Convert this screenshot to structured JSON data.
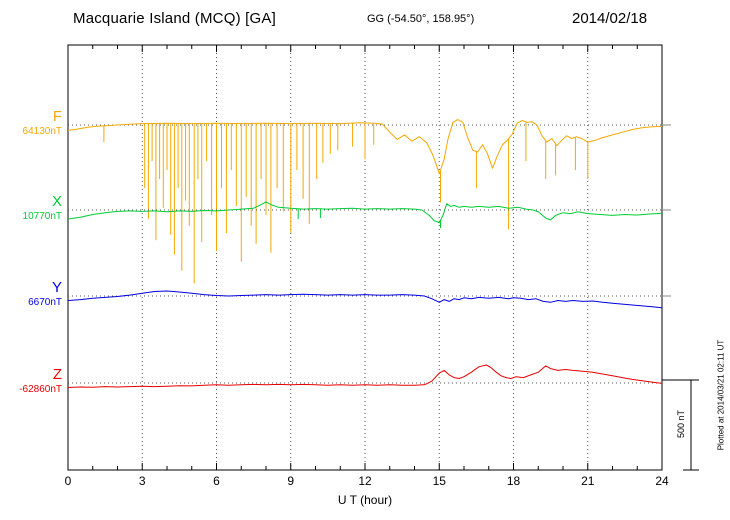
{
  "chart_data": {
    "type": "line",
    "title": "Macquarie Island (MCQ)  [GA]",
    "subtitle": "GG (-54.50°, 158.95°)",
    "date": "2014/02/18",
    "xlabel": "U T (hour)",
    "x_ticks": [
      0,
      3,
      6,
      9,
      12,
      15,
      18,
      21,
      24
    ],
    "x_range": [
      0,
      24
    ],
    "grid": "dotted vertical lines every 3 hours; dotted horizontal baseline per component",
    "legend_position": "left",
    "scale_bar": {
      "label": "500 nT",
      "nT": 500
    },
    "plotted_at": "Plotted at 2014/03/21 02:11 UT",
    "points_format": "[hour UT, offset in nT relative to component baseline]",
    "series": [
      {
        "name": "F",
        "color": "#f5a800",
        "baseline_label": "64130nT",
        "baseline_nT": 64130,
        "unit": "nT",
        "points": [
          [
            0,
            -30
          ],
          [
            0.4,
            -22
          ],
          [
            0.8,
            -12
          ],
          [
            1.2,
            -6
          ],
          [
            1.6,
            -4
          ],
          [
            2,
            0
          ],
          [
            2.5,
            4
          ],
          [
            3,
            8
          ],
          [
            4,
            10
          ],
          [
            5,
            8
          ],
          [
            6,
            10
          ],
          [
            7,
            8
          ],
          [
            8,
            10
          ],
          [
            9,
            8
          ],
          [
            10,
            10
          ],
          [
            11,
            8
          ],
          [
            11.8,
            12
          ],
          [
            12.4,
            10
          ],
          [
            12.7,
            5
          ],
          [
            13,
            -40
          ],
          [
            13.3,
            -80
          ],
          [
            13.6,
            -55
          ],
          [
            13.9,
            -90
          ],
          [
            14.2,
            -65
          ],
          [
            14.5,
            -100
          ],
          [
            14.75,
            -170
          ],
          [
            15,
            -270
          ],
          [
            15.2,
            -190
          ],
          [
            15.35,
            -80
          ],
          [
            15.55,
            15
          ],
          [
            15.75,
            30
          ],
          [
            15.95,
            15
          ],
          [
            16.15,
            -70
          ],
          [
            16.35,
            -140
          ],
          [
            16.55,
            -150
          ],
          [
            16.75,
            -110
          ],
          [
            16.95,
            -160
          ],
          [
            17.15,
            -240
          ],
          [
            17.35,
            -170
          ],
          [
            17.55,
            -110
          ],
          [
            17.75,
            -85
          ],
          [
            17.95,
            -50
          ],
          [
            18.15,
            10
          ],
          [
            18.35,
            25
          ],
          [
            18.55,
            15
          ],
          [
            18.75,
            18
          ],
          [
            18.95,
            0
          ],
          [
            19.15,
            -60
          ],
          [
            19.35,
            -95
          ],
          [
            19.55,
            -75
          ],
          [
            19.75,
            -115
          ],
          [
            19.95,
            -85
          ],
          [
            20.15,
            -60
          ],
          [
            20.35,
            -75
          ],
          [
            20.55,
            -65
          ],
          [
            20.75,
            -75
          ],
          [
            21,
            -95
          ],
          [
            21.3,
            -85
          ],
          [
            21.6,
            -70
          ],
          [
            22,
            -55
          ],
          [
            22.4,
            -40
          ],
          [
            22.8,
            -25
          ],
          [
            23.2,
            -15
          ],
          [
            23.6,
            -10
          ],
          [
            24,
            -8
          ]
        ],
        "spikes": [
          [
            1.45,
            -95
          ],
          [
            3.1,
            -350
          ],
          [
            3.25,
            -520
          ],
          [
            3.4,
            -200
          ],
          [
            3.55,
            -640
          ],
          [
            3.7,
            -300
          ],
          [
            3.85,
            -460
          ],
          [
            4,
            -250
          ],
          [
            4.15,
            -610
          ],
          [
            4.3,
            -720
          ],
          [
            4.45,
            -350
          ],
          [
            4.6,
            -810
          ],
          [
            4.75,
            -420
          ],
          [
            4.9,
            -560
          ],
          [
            5.1,
            -880
          ],
          [
            5.25,
            -300
          ],
          [
            5.4,
            -650
          ],
          [
            5.6,
            -200
          ],
          [
            5.8,
            -500
          ],
          [
            6,
            -700
          ],
          [
            6.2,
            -350
          ],
          [
            6.4,
            -600
          ],
          [
            6.6,
            -250
          ],
          [
            6.8,
            -450
          ],
          [
            7,
            -760
          ],
          [
            7.2,
            -400
          ],
          [
            7.4,
            -560
          ],
          [
            7.6,
            -660
          ],
          [
            7.8,
            -300
          ],
          [
            8,
            -500
          ],
          [
            8.2,
            -710
          ],
          [
            8.45,
            -350
          ],
          [
            8.7,
            -480
          ],
          [
            9,
            -600
          ],
          [
            9.25,
            -250
          ],
          [
            9.5,
            -410
          ],
          [
            9.75,
            -550
          ],
          [
            10.05,
            -300
          ],
          [
            10.3,
            -210
          ],
          [
            10.6,
            -160
          ],
          [
            10.9,
            -140
          ],
          [
            11.5,
            -120
          ],
          [
            12,
            -190
          ],
          [
            12.35,
            -110
          ],
          [
            15.05,
            -430
          ],
          [
            16.5,
            -350
          ],
          [
            17.8,
            -580
          ],
          [
            18.5,
            -200
          ],
          [
            19.3,
            -300
          ],
          [
            19.7,
            -280
          ],
          [
            20.5,
            -250
          ],
          [
            21,
            -300
          ]
        ]
      },
      {
        "name": "X",
        "color": "#00cc33",
        "baseline_label": "10770nT",
        "baseline_nT": 10770,
        "unit": "nT",
        "points": [
          [
            0,
            -50
          ],
          [
            0.5,
            -40
          ],
          [
            1,
            -25
          ],
          [
            1.5,
            -15
          ],
          [
            2,
            -8
          ],
          [
            2.5,
            -5
          ],
          [
            3,
            -8
          ],
          [
            3.5,
            -5
          ],
          [
            4,
            -10
          ],
          [
            4.5,
            -5
          ],
          [
            5,
            -8
          ],
          [
            5.5,
            -3
          ],
          [
            6,
            -5
          ],
          [
            6.5,
            0
          ],
          [
            7,
            5
          ],
          [
            7.5,
            10
          ],
          [
            7.8,
            30
          ],
          [
            8,
            45
          ],
          [
            8.2,
            30
          ],
          [
            8.5,
            15
          ],
          [
            9,
            10
          ],
          [
            9.5,
            5
          ],
          [
            10,
            8
          ],
          [
            10.5,
            5
          ],
          [
            11,
            8
          ],
          [
            11.5,
            10
          ],
          [
            12,
            5
          ],
          [
            12.5,
            8
          ],
          [
            13,
            5
          ],
          [
            13.5,
            8
          ],
          [
            14,
            5
          ],
          [
            14.3,
            0
          ],
          [
            14.6,
            -30
          ],
          [
            14.8,
            -60
          ],
          [
            15,
            -70
          ],
          [
            15.15,
            -30
          ],
          [
            15.3,
            35
          ],
          [
            15.45,
            20
          ],
          [
            15.6,
            25
          ],
          [
            15.8,
            15
          ],
          [
            16,
            20
          ],
          [
            16.3,
            15
          ],
          [
            16.6,
            20
          ],
          [
            17,
            15
          ],
          [
            17.4,
            20
          ],
          [
            17.8,
            10
          ],
          [
            18.2,
            15
          ],
          [
            18.5,
            5
          ],
          [
            18.8,
            0
          ],
          [
            19,
            -10
          ],
          [
            19.3,
            -45
          ],
          [
            19.5,
            -55
          ],
          [
            19.7,
            -30
          ],
          [
            20,
            -15
          ],
          [
            20.3,
            -20
          ],
          [
            20.6,
            -10
          ],
          [
            21,
            -20
          ],
          [
            21.5,
            -25
          ],
          [
            22,
            -30
          ],
          [
            22.5,
            -25
          ],
          [
            23,
            -28
          ],
          [
            23.5,
            -22
          ],
          [
            24,
            -18
          ]
        ],
        "spikes": [
          [
            9.3,
            -50
          ],
          [
            10.2,
            -45
          ],
          [
            15.05,
            -100
          ]
        ]
      },
      {
        "name": "Y",
        "color": "#0000e0",
        "baseline_label": "6670nT",
        "baseline_nT": 6670,
        "unit": "nT",
        "points": [
          [
            0,
            -25
          ],
          [
            0.5,
            -20
          ],
          [
            1,
            -12
          ],
          [
            1.5,
            -8
          ],
          [
            2,
            -3
          ],
          [
            2.5,
            5
          ],
          [
            3,
            15
          ],
          [
            3.5,
            25
          ],
          [
            4,
            28
          ],
          [
            4.5,
            22
          ],
          [
            5,
            15
          ],
          [
            5.5,
            8
          ],
          [
            6,
            3
          ],
          [
            6.5,
            0
          ],
          [
            7,
            3
          ],
          [
            7.5,
            5
          ],
          [
            8,
            8
          ],
          [
            8.5,
            5
          ],
          [
            9,
            8
          ],
          [
            9.5,
            10
          ],
          [
            10,
            8
          ],
          [
            10.5,
            5
          ],
          [
            11,
            8
          ],
          [
            11.5,
            5
          ],
          [
            12,
            8
          ],
          [
            12.5,
            5
          ],
          [
            13,
            5
          ],
          [
            13.5,
            8
          ],
          [
            14,
            5
          ],
          [
            14.4,
            0
          ],
          [
            14.7,
            -15
          ],
          [
            15,
            -35
          ],
          [
            15.2,
            -20
          ],
          [
            15.4,
            -30
          ],
          [
            15.6,
            -15
          ],
          [
            15.8,
            -20
          ],
          [
            16,
            -10
          ],
          [
            16.3,
            -15
          ],
          [
            16.6,
            -8
          ],
          [
            17,
            -12
          ],
          [
            17.4,
            -8
          ],
          [
            17.8,
            -15
          ],
          [
            18,
            -10
          ],
          [
            18.3,
            -12
          ],
          [
            18.6,
            -20
          ],
          [
            18.9,
            -15
          ],
          [
            19.2,
            -30
          ],
          [
            19.5,
            -35
          ],
          [
            19.8,
            -25
          ],
          [
            20.1,
            -30
          ],
          [
            20.4,
            -25
          ],
          [
            20.8,
            -30
          ],
          [
            21.2,
            -28
          ],
          [
            21.6,
            -35
          ],
          [
            22,
            -40
          ],
          [
            22.4,
            -45
          ],
          [
            22.8,
            -50
          ],
          [
            23.2,
            -55
          ],
          [
            23.6,
            -60
          ],
          [
            24,
            -65
          ]
        ],
        "spikes": []
      },
      {
        "name": "Z",
        "color": "#e80000",
        "baseline_label": "-62860nT",
        "baseline_nT": -62860,
        "unit": "nT",
        "points": [
          [
            0,
            -25
          ],
          [
            0.5,
            -22
          ],
          [
            1,
            -24
          ],
          [
            1.5,
            -20
          ],
          [
            2,
            -22
          ],
          [
            2.5,
            -20
          ],
          [
            3,
            -18
          ],
          [
            3.5,
            -20
          ],
          [
            4,
            -18
          ],
          [
            4.5,
            -15
          ],
          [
            5,
            -16
          ],
          [
            5.5,
            -12
          ],
          [
            6,
            -10
          ],
          [
            6.5,
            -12
          ],
          [
            7,
            -10
          ],
          [
            7.5,
            -8
          ],
          [
            8,
            -10
          ],
          [
            8.5,
            -8
          ],
          [
            9,
            -10
          ],
          [
            9.5,
            -8
          ],
          [
            10,
            -10
          ],
          [
            10.5,
            -12
          ],
          [
            11,
            -10
          ],
          [
            11.5,
            -12
          ],
          [
            12,
            -10
          ],
          [
            12.5,
            -12
          ],
          [
            13,
            -10
          ],
          [
            13.5,
            -12
          ],
          [
            14,
            -12
          ],
          [
            14.4,
            -10
          ],
          [
            14.7,
            10
          ],
          [
            15,
            55
          ],
          [
            15.2,
            70
          ],
          [
            15.4,
            45
          ],
          [
            15.6,
            30
          ],
          [
            15.8,
            25
          ],
          [
            16,
            35
          ],
          [
            16.3,
            60
          ],
          [
            16.6,
            90
          ],
          [
            16.9,
            100
          ],
          [
            17.1,
            85
          ],
          [
            17.3,
            60
          ],
          [
            17.5,
            40
          ],
          [
            17.7,
            30
          ],
          [
            17.9,
            25
          ],
          [
            18.1,
            35
          ],
          [
            18.4,
            30
          ],
          [
            18.7,
            45
          ],
          [
            19,
            60
          ],
          [
            19.3,
            95
          ],
          [
            19.5,
            80
          ],
          [
            19.8,
            70
          ],
          [
            20.1,
            75
          ],
          [
            20.4,
            70
          ],
          [
            20.8,
            65
          ],
          [
            21.2,
            60
          ],
          [
            21.6,
            50
          ],
          [
            22,
            40
          ],
          [
            22.4,
            30
          ],
          [
            22.8,
            20
          ],
          [
            23.2,
            12
          ],
          [
            23.6,
            5
          ],
          [
            24,
            -2
          ]
        ],
        "spikes": []
      }
    ]
  }
}
